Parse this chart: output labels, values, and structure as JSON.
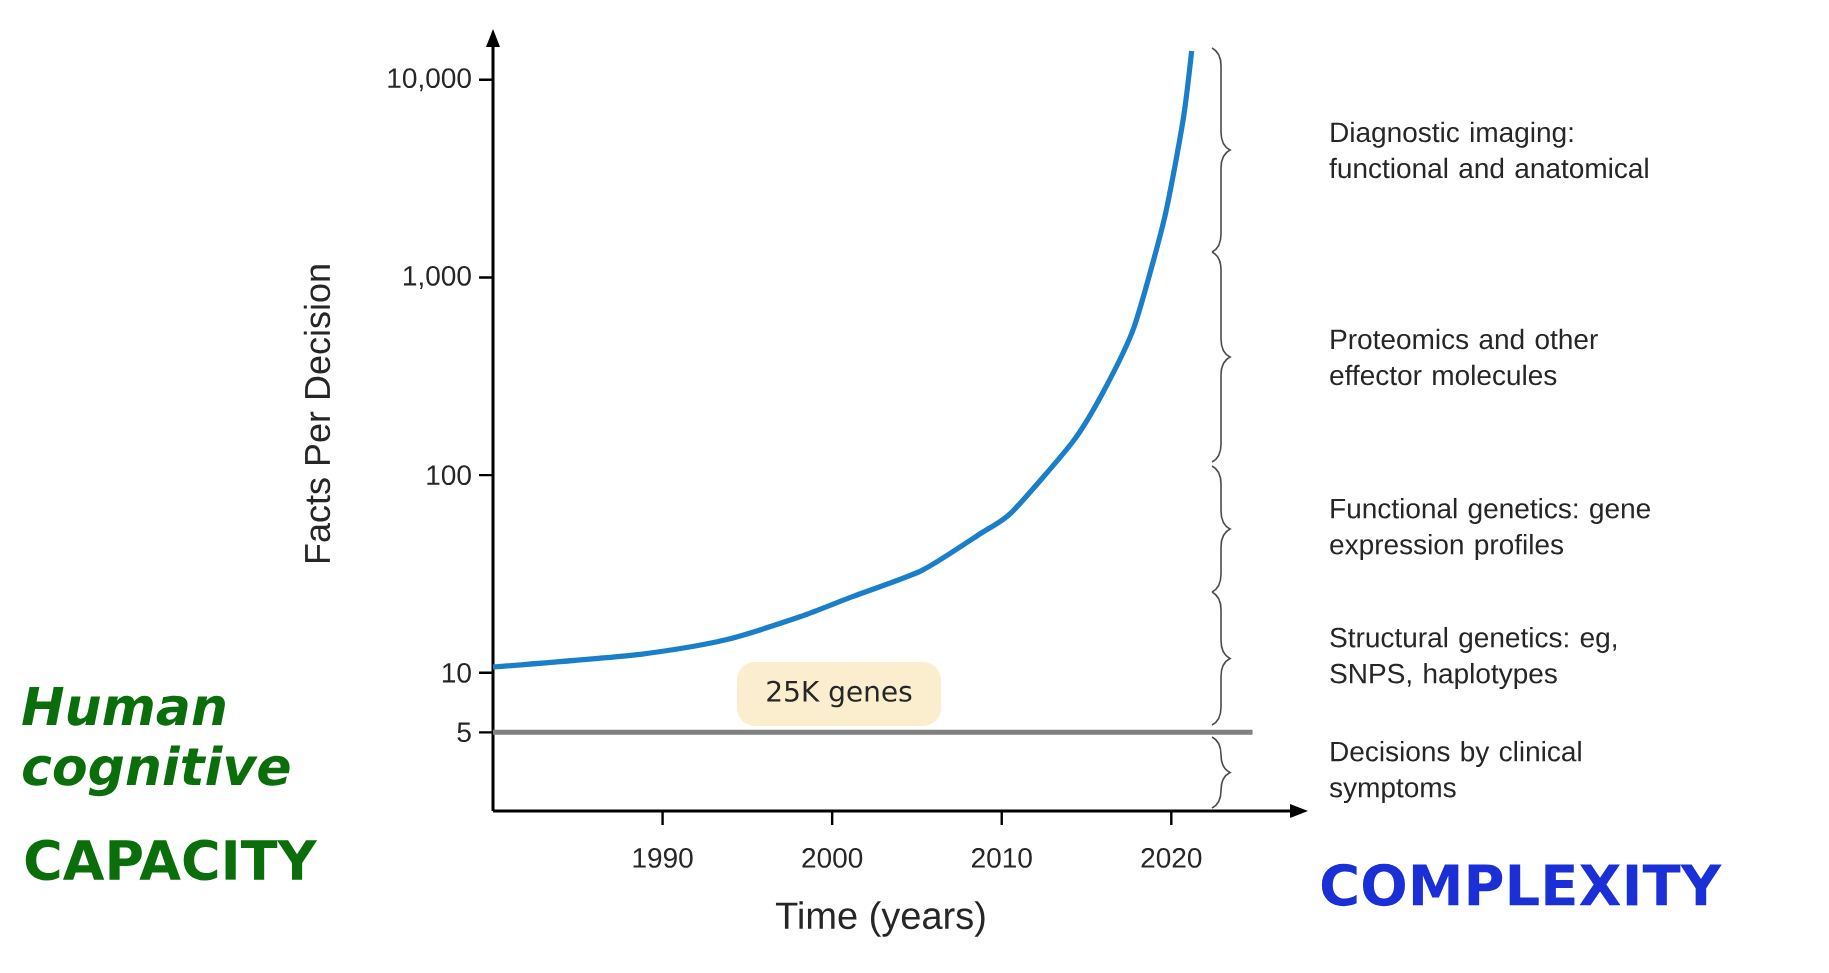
{
  "chart_data": {
    "type": "line",
    "xlabel": "Time (years)",
    "ylabel": "Facts Per Decision",
    "x": [
      1980,
      1988.7,
      1993.6,
      1998.1,
      2001.2,
      2005.3,
      2008.8,
      2010.6,
      2014.2,
      2016.0,
      2017.8,
      2019.6,
      2020.7,
      2021.2
    ],
    "series": [
      {
        "color": "#1a7fc8",
        "values": [
          10.7,
          12.4,
          14.6,
          19.2,
          24.3,
          33,
          51,
          65,
          148,
          265,
          560,
          2000,
          6300,
          14000
        ]
      }
    ],
    "xlim": [
      1980,
      2027
    ],
    "ylim": [
      2,
      15000
    ],
    "log": true,
    "xticks": [
      1990,
      2000,
      2010,
      2020
    ],
    "yticks": [
      5,
      10,
      100,
      {
        "value": 1000,
        "label": "1,000"
      },
      {
        "value": 10000,
        "label": "10,000"
      }
    ],
    "marker": "none",
    "line_style": "solid",
    "ref_lines": [
      {
        "axis": "y",
        "value": 5,
        "color": "#808080"
      }
    ],
    "annotations": [
      "25K genes",
      "Human cognitive",
      "CAPACITY",
      "COMPLEXITY",
      "Diagnostic imaging: functional and anatomical",
      "Proteomics and other effector molecules",
      "Functional genetics: gene expression profiles",
      "Structural genetics: eg, SNPS, haplotypes",
      "Decisions by clinical symptoms"
    ]
  }
}
